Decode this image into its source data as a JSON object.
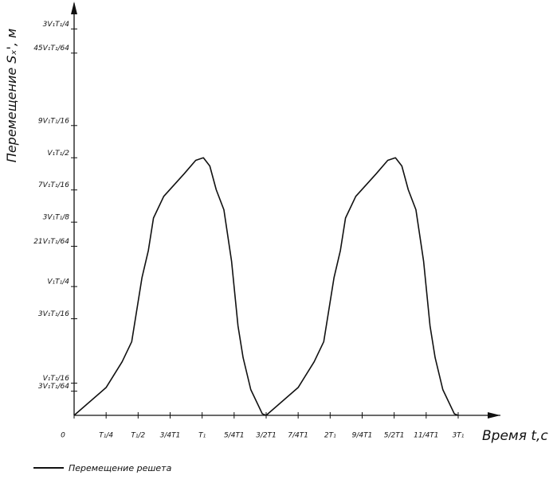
{
  "chart_data": {
    "type": "line",
    "ylabel": "Перемещение Sₓ', м",
    "xlabel": "Время t,с",
    "x": [
      0,
      0.25,
      0.375,
      0.45,
      0.53,
      0.58,
      0.62,
      0.7,
      0.86,
      0.95,
      1.01,
      1.06,
      1.11,
      1.17,
      1.23,
      1.28,
      1.32,
      1.38,
      1.47,
      1.5,
      1.75,
      1.875,
      1.95,
      2.03,
      2.08,
      2.12,
      2.2,
      2.36,
      2.45,
      2.51,
      2.56,
      2.61,
      2.67,
      2.73,
      2.78,
      2.82,
      2.88,
      2.97,
      3.0
    ],
    "series": [
      {
        "name": "Перемещение решета",
        "color": "#111111",
        "values": [
          0,
          0.054,
          0.104,
          0.143,
          0.267,
          0.32,
          0.383,
          0.425,
          0.469,
          0.495,
          0.5,
          0.484,
          0.438,
          0.399,
          0.299,
          0.174,
          0.112,
          0.05,
          0.003,
          0,
          0.054,
          0.104,
          0.143,
          0.267,
          0.32,
          0.383,
          0.425,
          0.469,
          0.495,
          0.5,
          0.484,
          0.438,
          0.399,
          0.299,
          0.174,
          0.112,
          0.05,
          0.003,
          0
        ]
      }
    ],
    "xlim": [
      0,
      3.33
    ],
    "ylim": [
      0,
      0.8
    ],
    "xticks": [
      0,
      {
        "value": 0.25,
        "label": "T₁/4"
      },
      {
        "value": 0.5,
        "label": "T₁/2"
      },
      {
        "value": 0.75,
        "label": "3/4T1"
      },
      {
        "value": 1,
        "label": "T₁"
      },
      {
        "value": 1.25,
        "label": "5/4T1"
      },
      {
        "value": 1.5,
        "label": "3/2T1"
      },
      {
        "value": 1.75,
        "label": "7/4T1"
      },
      {
        "value": 2,
        "label": "2T₁"
      },
      {
        "value": 2.25,
        "label": "9/4T1"
      },
      {
        "value": 2.5,
        "label": "5/2T1"
      },
      {
        "value": 2.75,
        "label": "11/4T1"
      },
      {
        "value": 3,
        "label": "3T₁"
      }
    ],
    "yticks": [
      {
        "value": 0.046875,
        "label": "3V₁T₁/64"
      },
      {
        "value": 0.0625,
        "label": "V₁T₁/16"
      },
      {
        "value": 0.1875,
        "label": "3V₁T₁/16"
      },
      {
        "value": 0.25,
        "label": "V₁T₁/4"
      },
      {
        "value": 0.328125,
        "label": "21V₁T₁/64"
      },
      {
        "value": 0.375,
        "label": "3V₁T₁/8"
      },
      {
        "value": 0.4375,
        "label": "7V₁T₁/16"
      },
      {
        "value": 0.5,
        "label": "V₁T₁/2"
      },
      {
        "value": 0.5625,
        "label": "9V₁T₁/16"
      },
      {
        "value": 0.703125,
        "label": "45V₁T₁/64"
      },
      {
        "value": 0.75,
        "label": "3V₁T₁/4"
      }
    ],
    "grid": false
  }
}
